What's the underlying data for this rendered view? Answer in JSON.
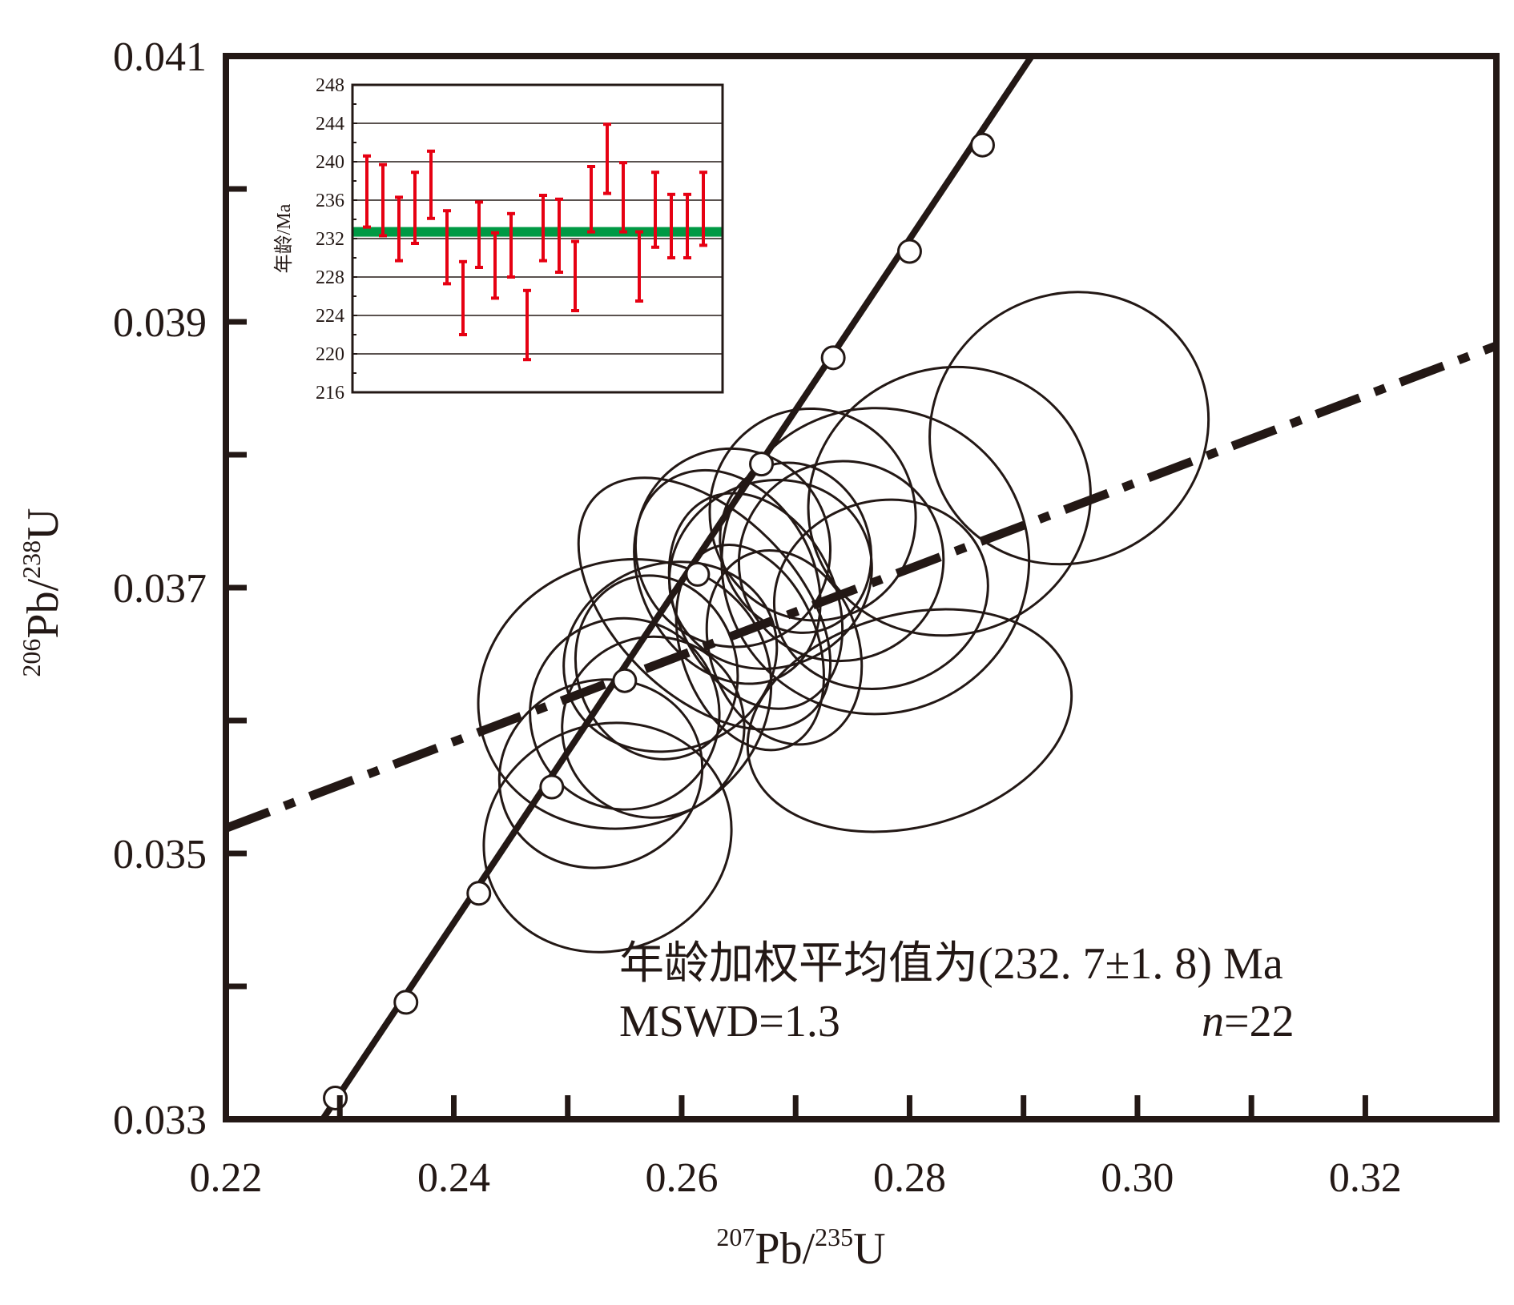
{
  "chart_data": {
    "type": "scatter",
    "subtype": "U-Pb concordia with error ellipses",
    "x_axis": {
      "label_prefix": "207",
      "label_main": "Pb/",
      "label_sup2": "235",
      "label_suffix": "U",
      "ticks": [
        "0.22",
        "0.24",
        "0.26",
        "0.28",
        "0.30",
        "0.32"
      ],
      "minor_ticks": [
        0.23,
        0.25,
        0.27,
        0.29,
        0.31
      ],
      "range": [
        0.22,
        0.3315
      ]
    },
    "y_axis": {
      "label_prefix": "206",
      "label_main": "Pb/",
      "label_sup2": "238",
      "label_suffix": "U",
      "ticks": [
        "0.033",
        "0.035",
        "0.037",
        "0.039",
        "0.041"
      ],
      "minor_ticks": [
        0.034,
        0.036,
        0.038,
        0.04
      ],
      "range": [
        0.033,
        0.041
      ]
    },
    "concordia_points": [
      {
        "x": 0.2296,
        "y": 0.03316
      },
      {
        "x": 0.2358,
        "y": 0.03388
      },
      {
        "x": 0.2422,
        "y": 0.0347
      },
      {
        "x": 0.2486,
        "y": 0.0355
      },
      {
        "x": 0.255,
        "y": 0.0363
      },
      {
        "x": 0.2614,
        "y": 0.0371
      },
      {
        "x": 0.267,
        "y": 0.03793
      },
      {
        "x": 0.2733,
        "y": 0.03873
      },
      {
        "x": 0.28,
        "y": 0.03953
      },
      {
        "x": 0.2864,
        "y": 0.04033
      }
    ],
    "concordia_line": {
      "x": [
        0.2285,
        0.2915
      ],
      "y": [
        0.033,
        0.0411
      ]
    },
    "discordia_line": {
      "x": [
        0.22,
        0.3315
      ],
      "y": [
        0.03519,
        0.03882
      ]
    },
    "ellipses": [
      {
        "cx": 0.2535,
        "cy": 0.03512,
        "rx": 0.011,
        "ry": 0.00085,
        "angle": -21
      },
      {
        "cx": 0.2529,
        "cy": 0.0356,
        "rx": 0.009,
        "ry": 0.0007,
        "angle": -20
      },
      {
        "cx": 0.255,
        "cy": 0.0362,
        "rx": 0.013,
        "ry": 0.001,
        "angle": -20
      },
      {
        "cx": 0.255,
        "cy": 0.03605,
        "rx": 0.0083,
        "ry": 0.00072,
        "angle": -18
      },
      {
        "cx": 0.2575,
        "cy": 0.03595,
        "rx": 0.008,
        "ry": 0.00068,
        "angle": -20
      },
      {
        "cx": 0.2578,
        "cy": 0.0364,
        "rx": 0.007,
        "ry": 0.0007,
        "angle": -18
      },
      {
        "cx": 0.259,
        "cy": 0.03648,
        "rx": 0.0095,
        "ry": 0.0007,
        "angle": -20
      },
      {
        "cx": 0.262,
        "cy": 0.03688,
        "rx": 0.008,
        "ry": 0.00115,
        "angle": -45
      },
      {
        "cx": 0.264,
        "cy": 0.03708,
        "rx": 0.0075,
        "ry": 0.00085,
        "angle": -30
      },
      {
        "cx": 0.2645,
        "cy": 0.0373,
        "rx": 0.0085,
        "ry": 0.00075,
        "angle": -25
      },
      {
        "cx": 0.2665,
        "cy": 0.0369,
        "rx": 0.007,
        "ry": 0.00085,
        "angle": -25
      },
      {
        "cx": 0.266,
        "cy": 0.03655,
        "rx": 0.006,
        "ry": 0.0008,
        "angle": -20
      },
      {
        "cx": 0.2678,
        "cy": 0.0371,
        "rx": 0.009,
        "ry": 0.0007,
        "angle": -22
      },
      {
        "cx": 0.269,
        "cy": 0.03655,
        "rx": 0.0065,
        "ry": 0.00075,
        "angle": -20
      },
      {
        "cx": 0.27,
        "cy": 0.0373,
        "rx": 0.0065,
        "ry": 0.00065,
        "angle": -20
      },
      {
        "cx": 0.2715,
        "cy": 0.03755,
        "rx": 0.009,
        "ry": 0.0008,
        "angle": -20
      },
      {
        "cx": 0.274,
        "cy": 0.0372,
        "rx": 0.009,
        "ry": 0.00075,
        "angle": -18
      },
      {
        "cx": 0.2775,
        "cy": 0.03695,
        "rx": 0.0095,
        "ry": 0.0007,
        "angle": -18
      },
      {
        "cx": 0.277,
        "cy": 0.0372,
        "rx": 0.0135,
        "ry": 0.00115,
        "angle": -23
      },
      {
        "cx": 0.28,
        "cy": 0.036,
        "rx": 0.0145,
        "ry": 0.0008,
        "angle": -15
      },
      {
        "cx": 0.2835,
        "cy": 0.03765,
        "rx": 0.0125,
        "ry": 0.001,
        "angle": -22
      },
      {
        "cx": 0.294,
        "cy": 0.0382,
        "rx": 0.0125,
        "ry": 0.001,
        "angle": -35
      }
    ],
    "annotation": {
      "line1": "年龄加权平均值为(232. 7±1. 8) Ma",
      "mswd": "MSWD=1.3",
      "n_label": "n",
      "n_value": "=22"
    },
    "inset": {
      "ylabel": "年龄/Ma",
      "ylim": [
        216,
        248
      ],
      "yticks": [
        "248",
        "244",
        "240",
        "236",
        "232",
        "228",
        "224",
        "220",
        "216"
      ],
      "weighted_mean": 232.7,
      "mean_band": [
        232.2,
        233.2
      ],
      "error_bars": [
        [
          233.2,
          240.6
        ],
        [
          232.3,
          239.7
        ],
        [
          229.7,
          236.3
        ],
        [
          231.5,
          238.9
        ],
        [
          234.1,
          241.1
        ],
        [
          227.3,
          234.9
        ],
        [
          222.0,
          229.6
        ],
        [
          229.0,
          235.8
        ],
        [
          225.8,
          232.6
        ],
        [
          228.0,
          234.6
        ],
        [
          219.4,
          226.6
        ],
        [
          229.7,
          236.5
        ],
        [
          228.5,
          236.1
        ],
        [
          224.5,
          231.7
        ],
        [
          232.7,
          239.5
        ],
        [
          236.7,
          243.9
        ],
        [
          232.7,
          239.9
        ],
        [
          225.5,
          232.7
        ],
        [
          231.1,
          238.9
        ],
        [
          230.0,
          236.6
        ],
        [
          230.0,
          236.6
        ],
        [
          231.3,
          238.9
        ]
      ]
    },
    "colors": {
      "line": "#231815",
      "error_bar": "#e60012",
      "mean_band": "#009944",
      "marker_fill": "#ffffff"
    }
  }
}
